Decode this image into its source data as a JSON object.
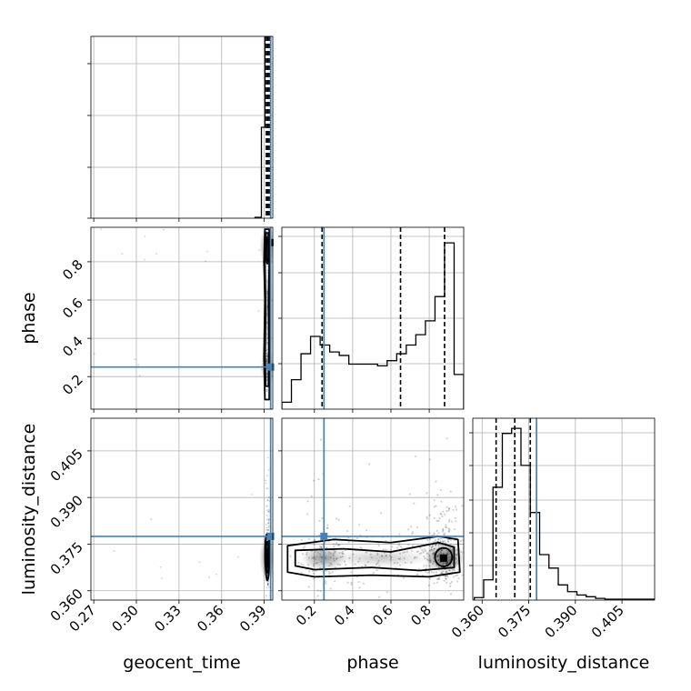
{
  "chart_data": {
    "type": "corner",
    "parameters": [
      "geocent_time",
      "phase",
      "luminosity_distance"
    ],
    "truths": {
      "geocent_time": 0.3945,
      "phase": 0.25,
      "luminosity_distance": 0.3775
    },
    "truth_color": "#4682b4",
    "quantiles": {
      "geocent_time": [
        0.3915,
        0.3925,
        0.3935
      ],
      "phase": [
        0.24,
        0.65,
        0.88
      ],
      "luminosity_distance": [
        0.3645,
        0.3705,
        0.3755
      ]
    },
    "panels": {
      "geocent_time_hist": {
        "xlim": [
          0.268,
          0.396
        ],
        "x_ticks": [
          "0.27",
          "0.30",
          "0.33",
          "0.36",
          "0.39"
        ],
        "x_tick_values": [
          0.27,
          0.3,
          0.33,
          0.36,
          0.39
        ],
        "bin_edges": [
          0.3835,
          0.388,
          0.3905,
          0.3915,
          0.3925,
          0.3935,
          0.3945
        ],
        "counts": [
          0.005,
          0.5,
          1.0,
          1.0,
          1.0,
          1.0
        ]
      },
      "phase_hist": {
        "xlim": [
          0.03,
          0.98
        ],
        "x_ticks": [
          "0.2",
          "0.4",
          "0.6",
          "0.8"
        ],
        "x_tick_values": [
          0.2,
          0.4,
          0.6,
          0.8
        ],
        "bin_edges": [
          0.03,
          0.08,
          0.13,
          0.18,
          0.23,
          0.28,
          0.33,
          0.38,
          0.43,
          0.48,
          0.53,
          0.58,
          0.63,
          0.68,
          0.73,
          0.78,
          0.83,
          0.88,
          0.93,
          0.98
        ],
        "counts": [
          0.04,
          0.17,
          0.32,
          0.42,
          0.37,
          0.33,
          0.31,
          0.26,
          0.26,
          0.26,
          0.25,
          0.28,
          0.32,
          0.37,
          0.43,
          0.51,
          0.65,
          0.96,
          0.2
        ],
        "ylim": [
          0,
          1.05
        ]
      },
      "luminosity_distance_hist": {
        "xlim": [
          0.357,
          0.4155
        ],
        "x_ticks": [
          "0.360",
          "0.375",
          "0.390",
          "0.405"
        ],
        "x_tick_values": [
          0.36,
          0.375,
          0.39,
          0.405
        ],
        "bin_edges": [
          0.3575,
          0.3605,
          0.3635,
          0.3665,
          0.3695,
          0.3725,
          0.3755,
          0.3785,
          0.3815,
          0.3845,
          0.3875,
          0.3905,
          0.3935,
          0.3965,
          0.3995,
          0.4155
        ],
        "counts": [
          0.015,
          0.12,
          0.67,
          0.99,
          1.02,
          0.8,
          0.52,
          0.27,
          0.19,
          0.09,
          0.05,
          0.03,
          0.02,
          0.01,
          0.005
        ],
        "ylim": [
          0,
          1.08
        ]
      },
      "phase_vs_geocent_time": {
        "xlim": [
          0.268,
          0.396
        ],
        "ylim": [
          0.03,
          0.98
        ],
        "y_ticks": [
          "0.2",
          "0.4",
          "0.6",
          "0.8"
        ],
        "y_tick_values": [
          0.2,
          0.4,
          0.6,
          0.8
        ]
      },
      "luminosity_distance_vs_geocent_time": {
        "xlim": [
          0.268,
          0.396
        ],
        "ylim": [
          0.357,
          0.4155
        ],
        "y_ticks": [
          "0.360",
          "0.375",
          "0.390",
          "0.405"
        ],
        "y_tick_values": [
          0.36,
          0.375,
          0.39,
          0.405
        ]
      },
      "luminosity_distance_vs_phase": {
        "xlim": [
          0.03,
          0.98
        ],
        "ylim": [
          0.357,
          0.4155
        ]
      }
    },
    "axis_labels": {
      "x": [
        "geocent_time",
        "phase",
        "luminosity_distance"
      ],
      "y": [
        "phase",
        "luminosity_distance"
      ]
    },
    "grid": true
  }
}
